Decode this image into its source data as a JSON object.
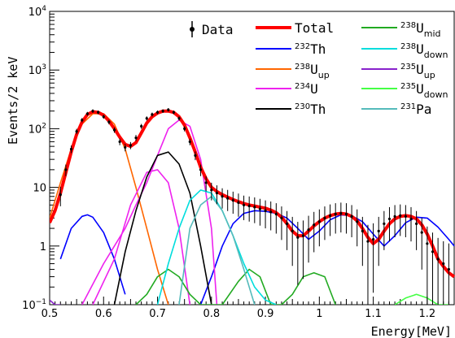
{
  "chart_data": {
    "type": "line",
    "xlabel": "Energy[MeV]",
    "ylabel": "Events/2 keV",
    "yscale": "log",
    "xlim": [
      0.5,
      1.25
    ],
    "ylim": [
      0.1,
      10000
    ],
    "grid": false,
    "legend_position": "top",
    "x_ticks": [
      {
        "value": 0.5,
        "label": "0.5"
      },
      {
        "value": 0.6,
        "label": "0.6"
      },
      {
        "value": 0.7,
        "label": "0.7"
      },
      {
        "value": 0.8,
        "label": "0.8"
      },
      {
        "value": 0.9,
        "label": "0.9"
      },
      {
        "value": 1.0,
        "label": "1"
      },
      {
        "value": 1.1,
        "label": "1.1"
      },
      {
        "value": 1.2,
        "label": "1.2"
      }
    ],
    "y_ticks": [
      {
        "value": 0.1,
        "base": "10",
        "exp": "−1"
      },
      {
        "value": 1,
        "label": "1"
      },
      {
        "value": 10,
        "label": "10"
      },
      {
        "value": 100,
        "base": "10",
        "exp": "2"
      },
      {
        "value": 1000,
        "base": "10",
        "exp": "3"
      },
      {
        "value": 10000,
        "base": "10",
        "exp": "4"
      }
    ],
    "data_points": {
      "name": "Data",
      "color": "#000000",
      "x": [
        0.52,
        0.53,
        0.54,
        0.55,
        0.56,
        0.57,
        0.58,
        0.59,
        0.6,
        0.61,
        0.62,
        0.63,
        0.64,
        0.65,
        0.66,
        0.67,
        0.68,
        0.69,
        0.7,
        0.71,
        0.72,
        0.73,
        0.74,
        0.75,
        0.76,
        0.77,
        0.78,
        0.79,
        0.8,
        0.81,
        0.82,
        0.83,
        0.84,
        0.85,
        0.86,
        0.87,
        0.88,
        0.89,
        0.9,
        0.91,
        0.92,
        0.93,
        0.94,
        0.95,
        0.96,
        0.97,
        0.98,
        0.99,
        1.0,
        1.01,
        1.02,
        1.03,
        1.04,
        1.05,
        1.06,
        1.07,
        1.08,
        1.09,
        1.1,
        1.11,
        1.12,
        1.13,
        1.14,
        1.15,
        1.16,
        1.17,
        1.18,
        1.19,
        1.2,
        1.21,
        1.22,
        1.23,
        1.24
      ],
      "y": [
        7.5,
        20,
        45,
        90,
        140,
        180,
        200,
        190,
        160,
        130,
        95,
        60,
        48,
        52,
        70,
        110,
        150,
        175,
        190,
        200,
        210,
        190,
        150,
        100,
        60,
        35,
        20,
        12,
        9,
        8,
        7,
        6.5,
        6,
        5.5,
        5,
        4.8,
        4.6,
        4.3,
        4,
        3.8,
        3.5,
        3,
        2.4,
        1.8,
        1.4,
        1.5,
        1.9,
        2.3,
        2.6,
        3,
        3.3,
        3.5,
        3.6,
        3.5,
        3.2,
        2.6,
        1.8,
        1.2,
        1.3,
        1.8,
        2.4,
        2.9,
        3.2,
        3.3,
        3.2,
        2.9,
        2.4,
        1.7,
        1.1,
        0.8,
        0.6,
        0.5,
        0.4
      ]
    },
    "series": [
      {
        "name": "Total",
        "label": "Total",
        "color": "#ff0000",
        "width": 4,
        "x": [
          0.5,
          0.51,
          0.52,
          0.53,
          0.54,
          0.55,
          0.56,
          0.57,
          0.58,
          0.59,
          0.6,
          0.61,
          0.62,
          0.63,
          0.64,
          0.65,
          0.66,
          0.67,
          0.68,
          0.69,
          0.7,
          0.71,
          0.72,
          0.73,
          0.74,
          0.75,
          0.76,
          0.77,
          0.78,
          0.79,
          0.8,
          0.81,
          0.82,
          0.83,
          0.84,
          0.85,
          0.86,
          0.87,
          0.88,
          0.89,
          0.9,
          0.91,
          0.92,
          0.93,
          0.94,
          0.95,
          0.96,
          0.97,
          0.98,
          0.99,
          1.0,
          1.01,
          1.02,
          1.03,
          1.04,
          1.05,
          1.06,
          1.07,
          1.08,
          1.09,
          1.1,
          1.11,
          1.12,
          1.13,
          1.14,
          1.15,
          1.16,
          1.17,
          1.18,
          1.19,
          1.2,
          1.21,
          1.22,
          1.23,
          1.24,
          1.25
        ],
        "y": [
          2.5,
          4,
          8,
          18,
          40,
          80,
          130,
          175,
          195,
          190,
          170,
          135,
          100,
          72,
          54,
          50,
          58,
          85,
          125,
          160,
          185,
          200,
          200,
          190,
          160,
          115,
          70,
          40,
          22,
          14,
          10,
          8.5,
          7.5,
          6.8,
          6.2,
          5.7,
          5.3,
          5,
          4.8,
          4.6,
          4.4,
          4.1,
          3.7,
          3.1,
          2.4,
          1.8,
          1.5,
          1.5,
          1.8,
          2.2,
          2.6,
          3,
          3.3,
          3.5,
          3.6,
          3.5,
          3.2,
          2.7,
          2,
          1.4,
          1.1,
          1.3,
          1.8,
          2.4,
          2.9,
          3.2,
          3.3,
          3.2,
          2.9,
          2.3,
          1.6,
          1,
          0.6,
          0.45,
          0.35,
          0.3
        ]
      },
      {
        "name": "232Th",
        "label_sup": "232",
        "label": "Th",
        "color": "#0000ff",
        "width": 1.6,
        "x": [
          0.78,
          0.8,
          0.82,
          0.84,
          0.86,
          0.88,
          0.9,
          0.92,
          0.94,
          0.96,
          0.98,
          1.0,
          1.02,
          1.04,
          1.06,
          1.08,
          1.1,
          1.12,
          1.14,
          1.16,
          1.18,
          1.2,
          1.22,
          1.24,
          1.25
        ],
        "y": [
          0.1,
          0.3,
          1,
          2.4,
          3.6,
          4,
          3.9,
          3.6,
          3,
          2,
          1.3,
          1.8,
          2.8,
          3.4,
          3.3,
          2.6,
          1.6,
          1,
          1.5,
          2.5,
          3.1,
          3,
          2.1,
          1.3,
          1
        ],
        "secondary_x": [
          0.52,
          0.54,
          0.56,
          0.57,
          0.58,
          0.6,
          0.62,
          0.64
        ],
        "secondary_y": [
          0.6,
          2,
          3.2,
          3.4,
          3.1,
          1.7,
          0.6,
          0.15
        ]
      },
      {
        "name": "238U_up",
        "label_sup": "238",
        "label": "U",
        "label_sub": "up",
        "color": "#ff6600",
        "width": 1.6,
        "x": [
          0.5,
          0.52,
          0.54,
          0.56,
          0.58,
          0.6,
          0.62,
          0.64,
          0.66,
          0.68,
          0.7,
          0.72
        ],
        "y": [
          3,
          12,
          45,
          120,
          180,
          180,
          120,
          45,
          10,
          2,
          0.4,
          0.1
        ]
      },
      {
        "name": "234U",
        "label_sup": "234",
        "label": "U",
        "color": "#ee22ee",
        "width": 1.6,
        "x": [
          0.56,
          0.6,
          0.64,
          0.66,
          0.68,
          0.7,
          0.72,
          0.74,
          0.76,
          0.78,
          0.8,
          0.81
        ],
        "y": [
          0.1,
          0.5,
          2,
          5,
          12,
          35,
          100,
          140,
          110,
          30,
          2,
          0.1
        ],
        "secondary_x": [
          0.58,
          0.62,
          0.65,
          0.68,
          0.7,
          0.72,
          0.74,
          0.76
        ],
        "secondary_y": [
          0.1,
          0.6,
          5,
          18,
          20,
          12,
          2,
          0.1
        ]
      },
      {
        "name": "230Th",
        "label_sup": "230",
        "label": "Th",
        "color": "#000000",
        "width": 1.6,
        "x": [
          0.62,
          0.64,
          0.66,
          0.68,
          0.7,
          0.72,
          0.74,
          0.76,
          0.78,
          0.8
        ],
        "y": [
          0.1,
          0.8,
          4,
          15,
          35,
          40,
          25,
          8,
          1,
          0.1
        ]
      },
      {
        "name": "238U_mid",
        "label_sup": "238",
        "label": "U",
        "label_sub": "mid",
        "color": "#22aa22",
        "width": 1.6,
        "x": [
          0.66,
          0.68,
          0.7,
          0.72,
          0.74,
          0.76,
          0.78,
          0.82,
          0.85,
          0.87,
          0.89,
          0.91,
          0.93,
          0.95,
          0.97,
          0.99,
          1.01,
          1.03
        ],
        "y": [
          0.1,
          0.15,
          0.3,
          0.4,
          0.3,
          0.15,
          0.1,
          0.1,
          0.25,
          0.4,
          0.3,
          0.1,
          0.1,
          0.15,
          0.3,
          0.35,
          0.3,
          0.1
        ]
      },
      {
        "name": "238U_down",
        "label_sup": "238",
        "label": "U",
        "label_sub": "down",
        "color": "#00dddd",
        "width": 1.6,
        "x": [
          0.7,
          0.72,
          0.74,
          0.76,
          0.78,
          0.8,
          0.82,
          0.84,
          0.86,
          0.88,
          0.9,
          0.92
        ],
        "y": [
          0.1,
          0.5,
          2,
          6,
          9,
          8,
          4,
          1.5,
          0.5,
          0.2,
          0.12,
          0.1
        ]
      },
      {
        "name": "235U_up",
        "label_sup": "235",
        "label": "U",
        "label_sub": "up",
        "color": "#8822cc",
        "width": 1.6,
        "x": [
          0.5,
          0.51,
          0.52
        ],
        "y": [
          0.12,
          0.1,
          0.1
        ]
      },
      {
        "name": "235U_down",
        "label_sup": "235",
        "label": "U",
        "label_sub": "down",
        "color": "#44ff44",
        "width": 1.6,
        "x": [
          1.14,
          1.16,
          1.18,
          1.2,
          1.22,
          1.24
        ],
        "y": [
          0.1,
          0.13,
          0.15,
          0.13,
          0.1,
          0.1
        ]
      },
      {
        "name": "231Pa",
        "label_sup": "231",
        "label": "Pa",
        "color": "#55bbbb",
        "width": 1.6,
        "x": [
          0.74,
          0.76,
          0.78,
          0.8,
          0.82,
          0.84,
          0.86,
          0.88
        ],
        "y": [
          0.1,
          2,
          5,
          7,
          4,
          1.5,
          0.4,
          0.1
        ]
      }
    ]
  }
}
